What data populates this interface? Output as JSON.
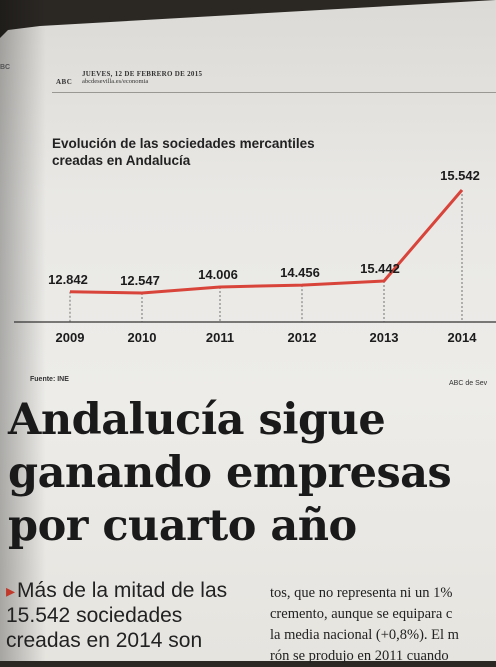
{
  "page": {
    "edge_mark": "BC",
    "header": {
      "logo": "ABC",
      "date": "JUEVES, 12 DE FEBRERO DE 2015",
      "url": "abcdesevilla.es/economia"
    }
  },
  "chart_data": {
    "type": "line",
    "title": "Evolución de las sociedades mercantiles creadas en Andalucía",
    "title_lines": [
      "Evolución de las sociedades mercantiles",
      "creadas en Andalucía"
    ],
    "x": [
      "2009",
      "2010",
      "2011",
      "2012",
      "2013",
      "2014"
    ],
    "values": [
      12842,
      12547,
      14006,
      14456,
      15442,
      15542
    ],
    "value_labels": [
      "12.842",
      "12.547",
      "14.006",
      "14.456",
      "15.442",
      "15.542"
    ],
    "line_color": "#d9443a",
    "source": "Fuente: INE",
    "credit": "ABC de Sev"
  },
  "article": {
    "headline": [
      "Andalucía sigue",
      "ganando empresas",
      "por cuarto año"
    ],
    "lead_lines": [
      "Más de la mitad de las",
      "15.542 sociedades",
      "creadas en 2014 son"
    ],
    "body_lines": [
      "tos, que no representa ni un 1%",
      "cremento, aunque se equipara c",
      "la media nacional (+0,8%). El m",
      "rón se produjo en 2011 cuando"
    ]
  }
}
